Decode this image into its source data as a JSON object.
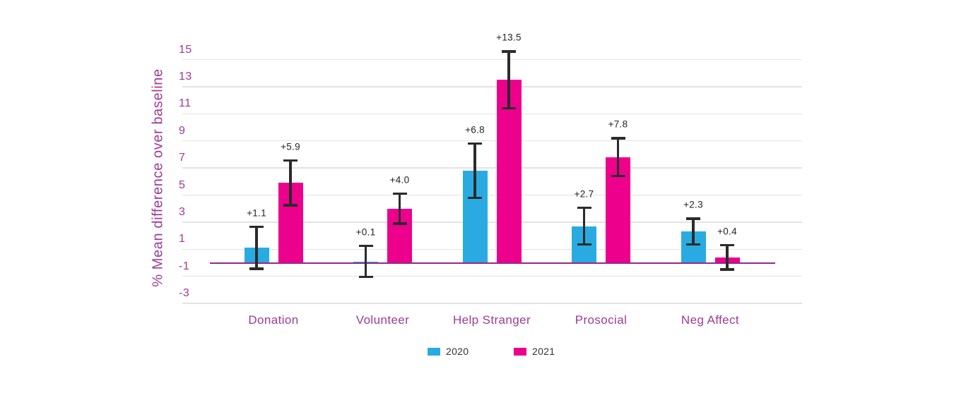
{
  "chart_data": {
    "type": "bar",
    "title": "",
    "xlabel": "",
    "ylabel": "% Mean difference over baseline",
    "categories": [
      "Donation",
      "Volunteer",
      "Help Stranger",
      "Prosocial",
      "Neg Affect"
    ],
    "series": [
      {
        "name": "2020",
        "color": "#29ABE2",
        "values": [
          1.1,
          0.1,
          6.8,
          2.7,
          2.3
        ],
        "error_margins": [
          1.55,
          1.15,
          2.0,
          1.35,
          0.95
        ],
        "point_labels": [
          "+1.1",
          "+0.1",
          "+6.8",
          "+2.7",
          "+2.3"
        ]
      },
      {
        "name": "2021",
        "color": "#EC008C",
        "values": [
          5.9,
          4.0,
          13.5,
          7.8,
          0.4
        ],
        "error_margins": [
          1.65,
          1.1,
          2.1,
          1.4,
          0.9
        ],
        "point_labels": [
          "+5.9",
          "+4.0",
          "+13.5",
          "+7.8",
          "+0.4"
        ]
      }
    ],
    "y_ticks": [
      15,
      13,
      11,
      9,
      7,
      5,
      3,
      1,
      -1,
      -3
    ],
    "ylim": [
      -4,
      16
    ],
    "grid": true,
    "error_bars": true,
    "legend_position": "bottom",
    "baseline_value": 0
  },
  "colors": {
    "axis_text": "#9E3A97",
    "baseline_line": "#93278F",
    "gridline": "#E3E3E3",
    "error_bar": "#2B2B2B",
    "data_label": "#231F20",
    "legend_text": "#333333",
    "background": "#FFFFFF"
  }
}
